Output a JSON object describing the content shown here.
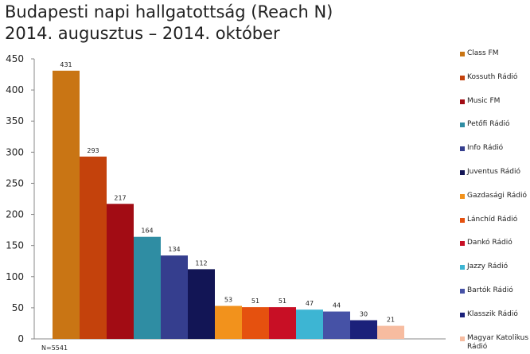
{
  "title_lines": [
    "Budapesti napi hallgatottság (Reach N)",
    "2014. augusztus – 2014. október"
  ],
  "footnote": "N=5541",
  "chart_data": {
    "type": "bar",
    "title": "Budapesti napi hallgatottság (Reach N) 2014. augusztus – 2014. október",
    "ylim": [
      0,
      450
    ],
    "yticks": [
      0,
      50,
      100,
      150,
      200,
      250,
      300,
      350,
      400,
      450
    ],
    "grid": false,
    "legend": "right",
    "categories": [
      "Class FM",
      "Kossuth Rádió",
      "Music FM",
      "Petőfi Rádió",
      "Info Rádió",
      "Juventus Rádió",
      "Gazdasági Rádió",
      "Lánchíd Rádió",
      "Dankó Rádió",
      "Jazzy Rádió",
      "Bartók Rádió",
      "Klasszik Rádió",
      "Magyar Katolikus Rádió"
    ],
    "values": [
      431,
      293,
      217,
      164,
      134,
      112,
      53,
      51,
      51,
      47,
      44,
      30,
      21
    ],
    "colors": [
      "#c97514",
      "#c4420c",
      "#a20c14",
      "#2f8da3",
      "#353e8e",
      "#121555",
      "#f2921c",
      "#e5510f",
      "#c80f25",
      "#3db5d3",
      "#4652a6",
      "#1b217a",
      "#f7bca0"
    ]
  }
}
